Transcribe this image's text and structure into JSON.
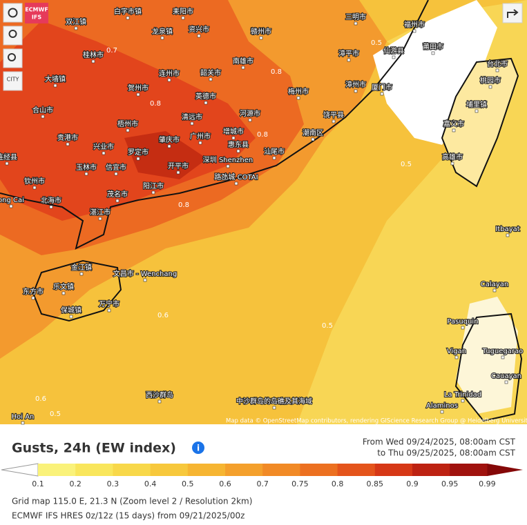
{
  "map": {
    "logo": [
      "ECMWF",
      "IFS"
    ],
    "city_button": "CITY",
    "labels": [
      "白字市镇",
      "耒阳市",
      "双江镇",
      "龙泉镇",
      "资兴市",
      "赣州市",
      "三明市",
      "福州市",
      "莆田市",
      "桂林市",
      "连州市",
      "韶关市",
      "南雄市",
      "漳平市",
      "仙游县",
      "大墙镇",
      "贺州市",
      "英德市",
      "梅州市",
      "漳州市",
      "厦门市",
      "台北市",
      "桃园市",
      "埔里镇",
      "合山市",
      "梧州市",
      "清远市",
      "河源市",
      "饶平县",
      "贵港市",
      "肇庆市",
      "广州市",
      "增城市",
      "惠东县",
      "潮南区",
      "嘉义市",
      "连经县",
      "玉林市",
      "兴业市",
      "罗定市",
      "信宜市",
      "开平市",
      "深圳 Shenzhen",
      "汕尾市",
      "高雄市",
      "钦州市",
      "阳江市",
      "路氹城 COTAI",
      "北海市",
      "茂名市",
      "湛江市",
      "ong Cai",
      "金江镇",
      "文昌市 - Wenchang",
      "东方市",
      "乐文镇",
      "保城镇",
      "万宁市",
      "Itbayat",
      "Calayan",
      "Pasuquin",
      "Vigan",
      "Tuguegarao",
      "Cauayan",
      "La Trinidad",
      "Alaminos",
      "西沙群岛",
      "中沙群岛的岛礁及其海域",
      "Hoi An"
    ],
    "contour_labels": [
      "0.7",
      "0.8",
      "0.8",
      "0.8",
      "0.8",
      "0.5",
      "0.6",
      "0.5",
      "0.6",
      "0.5",
      "0.5"
    ],
    "attribution": "Map data © OpenStreetMap contributors, rendering GIScience Research Group @ Heidelberg University"
  },
  "panel": {
    "title": "Gusts, 24h (EW index)",
    "from": "From Wed 09/24/2025, 08:00am CST",
    "to": "to Thu 09/25/2025, 08:00am CST",
    "legend": {
      "labels": [
        "0.1",
        "0.2",
        "0.3",
        "0.4",
        "0.5",
        "0.6",
        "0.7",
        "0.75",
        "0.8",
        "0.85",
        "0.9",
        "0.95",
        "0.99"
      ],
      "colors": [
        "#ffffff",
        "#faf27a",
        "#f9e65c",
        "#f8d84a",
        "#f7c83c",
        "#f6b532",
        "#f4a02c",
        "#f18a26",
        "#ec7020",
        "#e4541b",
        "#d63816",
        "#bd2212",
        "#a0120e",
        "#850808"
      ]
    },
    "footer": [
      "Grid map 115.0 E, 21.3 N (Zoom level 2 / Resolution 2km)",
      "ECMWF IFS HRES 0z/12z (15 days) from 09/21/2025/00z"
    ]
  }
}
